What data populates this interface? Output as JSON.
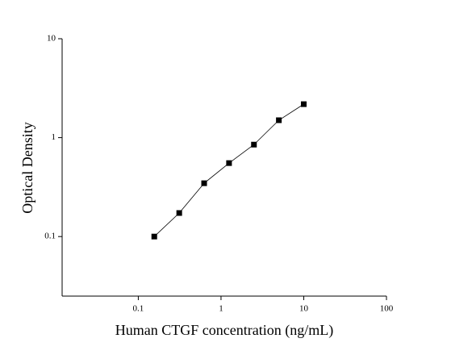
{
  "chart_data": {
    "type": "scatter",
    "xlabel": "Human CTGF concentration (ng/mL)",
    "ylabel": "Optical Density",
    "x": [
      0.156,
      0.3125,
      0.625,
      1.25,
      2.5,
      5,
      10
    ],
    "series": [
      {
        "values": [
          0.1,
          0.173,
          0.346,
          0.553,
          0.85,
          1.5,
          2.18
        ],
        "color": "#000000"
      }
    ],
    "xlim": [
      0.012,
      100
    ],
    "ylim": [
      0.025,
      10
    ],
    "xticks": [
      0.1,
      1,
      10,
      100
    ],
    "yticks": [
      0.1,
      1,
      10
    ],
    "xscale": "log",
    "yscale": "log",
    "fit_line": true
  }
}
